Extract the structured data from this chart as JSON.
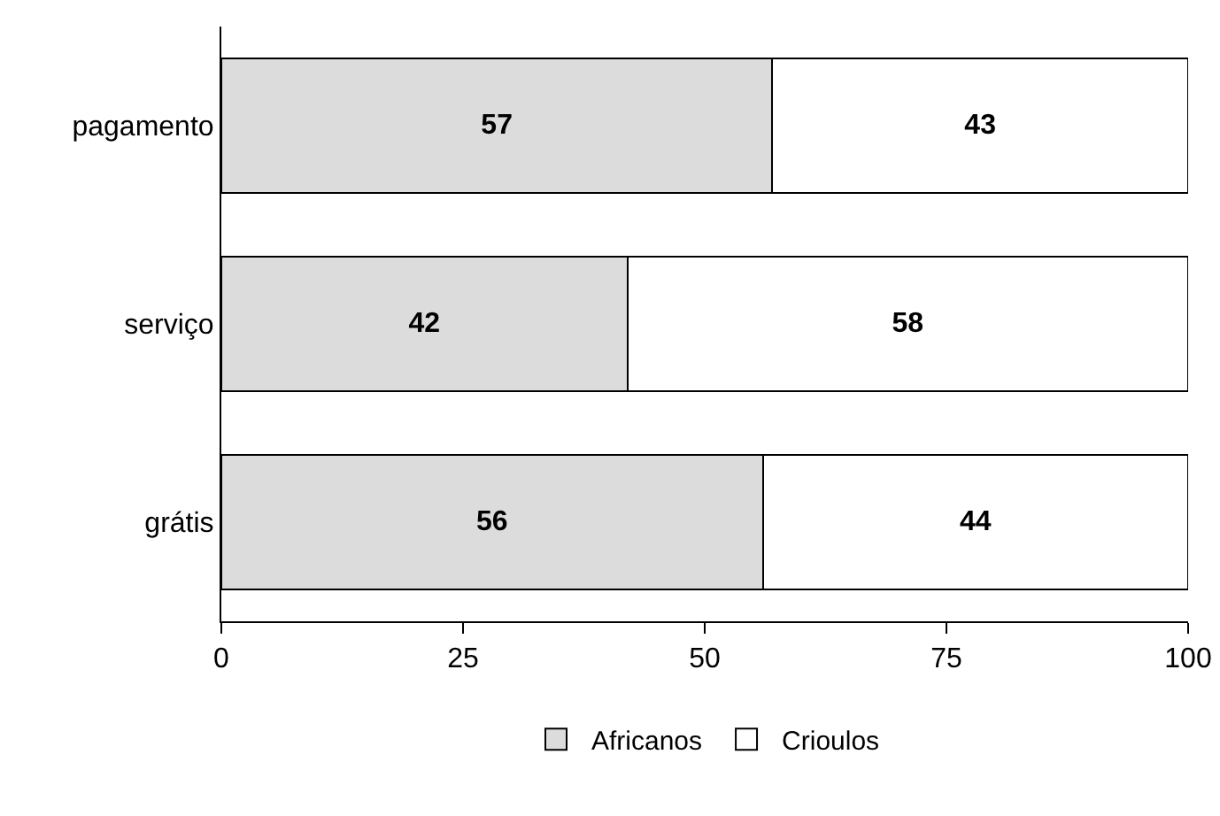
{
  "chart_data": {
    "type": "bar",
    "orientation": "horizontal",
    "stacked": true,
    "categories": [
      "pagamento",
      "serviço",
      "grátis"
    ],
    "series": [
      {
        "name": "Africanos",
        "color": "#dcdcdc",
        "values": [
          57,
          42,
          56
        ]
      },
      {
        "name": "Crioulos",
        "color": "#ffffff",
        "values": [
          43,
          58,
          44
        ]
      }
    ],
    "xlim": [
      0,
      100
    ],
    "xticks": [
      0,
      25,
      50,
      75,
      100
    ],
    "grid": false,
    "legend": "bottom",
    "data_labels": true
  }
}
